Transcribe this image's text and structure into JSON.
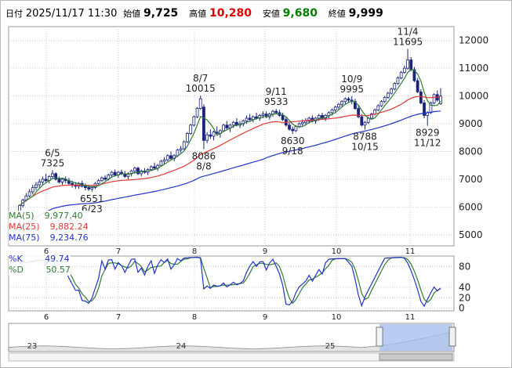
{
  "header": {
    "date_label": "日付",
    "datetime": "2025/11/17 11:30",
    "open_label": "始値",
    "open": "9,725",
    "high_label": "高値",
    "high": "10,280",
    "low_label": "安値",
    "low": "9,680",
    "close_label": "終値",
    "close": "9,999"
  },
  "legend": {
    "ma5_label": "MA(5)",
    "ma5": "9,977.40",
    "ma25_label": "MA(25)",
    "ma25": "9,882.24",
    "ma75_label": "MA(75)",
    "ma75": "9,234.76"
  },
  "stoch_legend": {
    "k_label": "%K",
    "k": "49.74",
    "d_label": "%D",
    "d": "50.57"
  },
  "colors": {
    "up": "#ffffff",
    "down": "#1a237e",
    "ma5": "#2e7d32",
    "ma25": "#e53935",
    "ma75": "#2233cc",
    "k": "#2233cc",
    "d": "#2e7d32",
    "navigator_fill": "#a8c0f0"
  },
  "chart_data": [
    {
      "type": "candlestick",
      "y_ticks": [
        "12000",
        "11000",
        "10000",
        "9000",
        "8000",
        "7000",
        "6000",
        "5000"
      ],
      "ylim": [
        4600,
        12500
      ],
      "x_month_labels": [
        "6",
        "7",
        "8",
        "9",
        "10",
        "11"
      ],
      "annotations": [
        {
          "text_top": "6/5",
          "text_bottom": "7325",
          "kind": "high",
          "date_index": 10
        },
        {
          "text_top": "6551",
          "text_bottom": "6/23",
          "kind": "low",
          "date_index": 22
        },
        {
          "text_top": "8/7",
          "text_bottom": "10015",
          "kind": "high",
          "date_index": 55
        },
        {
          "text_top": "8086",
          "text_bottom": "8/8",
          "kind": "low",
          "date_index": 56
        },
        {
          "text_top": "9/11",
          "text_bottom": "9533",
          "kind": "high",
          "date_index": 78
        },
        {
          "text_top": "8630",
          "text_bottom": "9/18",
          "kind": "low",
          "date_index": 83
        },
        {
          "text_top": "10/9",
          "text_bottom": "9995",
          "kind": "high",
          "date_index": 101
        },
        {
          "text_top": "8788",
          "text_bottom": "10/15",
          "kind": "low",
          "date_index": 105
        },
        {
          "text_top": "11/4",
          "text_bottom": "11695",
          "kind": "high",
          "date_index": 118
        },
        {
          "text_top": "8929",
          "text_bottom": "11/12",
          "kind": "low",
          "date_index": 124
        }
      ],
      "candles": [
        [
          5810,
          6100,
          5750,
          6050
        ],
        [
          6050,
          6300,
          5980,
          6250
        ],
        [
          6250,
          6500,
          6200,
          6400
        ],
        [
          6400,
          6650,
          6350,
          6550
        ],
        [
          6550,
          6800,
          6450,
          6700
        ],
        [
          6700,
          6900,
          6600,
          6800
        ],
        [
          6800,
          7000,
          6700,
          6900
        ],
        [
          6900,
          7100,
          6800,
          7000
        ],
        [
          7000,
          7200,
          6900,
          6950
        ],
        [
          6950,
          7150,
          6850,
          7100
        ],
        [
          7100,
          7325,
          7000,
          7200
        ],
        [
          7200,
          7250,
          6950,
          7000
        ],
        [
          7000,
          7100,
          6850,
          6900
        ],
        [
          6900,
          7050,
          6800,
          7000
        ],
        [
          7000,
          7100,
          6850,
          6950
        ],
        [
          6950,
          7050,
          6800,
          6850
        ],
        [
          6850,
          6950,
          6700,
          6800
        ],
        [
          6800,
          6900,
          6650,
          6750
        ],
        [
          6750,
          6900,
          6650,
          6850
        ],
        [
          6850,
          6950,
          6700,
          6750
        ],
        [
          6750,
          6850,
          6600,
          6700
        ],
        [
          6700,
          6800,
          6580,
          6650
        ],
        [
          6650,
          6750,
          6551,
          6700
        ],
        [
          6700,
          6900,
          6650,
          6850
        ],
        [
          6850,
          7000,
          6800,
          6950
        ],
        [
          6950,
          7100,
          6900,
          7050
        ],
        [
          7050,
          7150,
          6950,
          7000
        ],
        [
          7000,
          7200,
          6950,
          7150
        ],
        [
          7150,
          7300,
          7050,
          7250
        ],
        [
          7250,
          7350,
          7100,
          7150
        ],
        [
          7150,
          7300,
          7050,
          7250
        ],
        [
          7250,
          7350,
          7150,
          7200
        ],
        [
          7200,
          7300,
          7050,
          7100
        ],
        [
          7100,
          7250,
          7000,
          7200
        ],
        [
          7200,
          7350,
          7100,
          7300
        ],
        [
          7300,
          7450,
          7200,
          7400
        ],
        [
          7400,
          7450,
          7150,
          7200
        ],
        [
          7200,
          7350,
          7100,
          7300
        ],
        [
          7300,
          7400,
          7200,
          7250
        ],
        [
          7250,
          7400,
          7150,
          7350
        ],
        [
          7350,
          7500,
          7300,
          7450
        ],
        [
          7450,
          7600,
          7350,
          7400
        ],
        [
          7400,
          7550,
          7300,
          7500
        ],
        [
          7500,
          7700,
          7450,
          7650
        ],
        [
          7650,
          7800,
          7550,
          7700
        ],
        [
          7700,
          7900,
          7650,
          7850
        ],
        [
          7850,
          8000,
          7700,
          7750
        ],
        [
          7750,
          7900,
          7650,
          7850
        ],
        [
          7850,
          8100,
          7800,
          8050
        ],
        [
          8050,
          8200,
          7950,
          8100
        ],
        [
          8100,
          8400,
          8050,
          8350
        ],
        [
          8350,
          8700,
          8300,
          8650
        ],
        [
          8650,
          9000,
          8600,
          8950
        ],
        [
          8950,
          9300,
          8900,
          9250
        ],
        [
          9250,
          9600,
          9200,
          9550
        ],
        [
          9550,
          10015,
          9500,
          9900
        ],
        [
          9600,
          9700,
          8086,
          8400
        ],
        [
          8400,
          8700,
          8300,
          8600
        ],
        [
          8600,
          8800,
          8450,
          8550
        ],
        [
          8550,
          8750,
          8400,
          8700
        ],
        [
          8700,
          8900,
          8600,
          8650
        ],
        [
          8650,
          8800,
          8500,
          8750
        ],
        [
          8750,
          9000,
          8700,
          8950
        ],
        [
          8950,
          9100,
          8800,
          8850
        ],
        [
          8850,
          9000,
          8700,
          8950
        ],
        [
          8950,
          9100,
          8850,
          9050
        ],
        [
          9050,
          9200,
          8900,
          8950
        ],
        [
          8950,
          9100,
          8850,
          9000
        ],
        [
          9000,
          9150,
          8900,
          9100
        ],
        [
          9100,
          9300,
          9000,
          9200
        ],
        [
          9200,
          9350,
          9100,
          9150
        ],
        [
          9150,
          9300,
          9050,
          9250
        ],
        [
          9250,
          9400,
          9150,
          9200
        ],
        [
          9200,
          9350,
          9100,
          9300
        ],
        [
          9300,
          9450,
          9200,
          9350
        ],
        [
          9350,
          9450,
          9200,
          9250
        ],
        [
          9250,
          9400,
          9150,
          9350
        ],
        [
          9350,
          9500,
          9250,
          9450
        ],
        [
          9450,
          9533,
          9350,
          9400
        ],
        [
          9400,
          9500,
          9250,
          9300
        ],
        [
          9300,
          9400,
          9100,
          9150
        ],
        [
          9150,
          9250,
          8900,
          8950
        ],
        [
          8950,
          9050,
          8750,
          8800
        ],
        [
          8800,
          8900,
          8630,
          8750
        ],
        [
          8750,
          8950,
          8700,
          8900
        ],
        [
          8900,
          9050,
          8850,
          9000
        ],
        [
          9000,
          9150,
          8900,
          9050
        ],
        [
          9050,
          9200,
          8950,
          9100
        ],
        [
          9100,
          9250,
          9000,
          9200
        ],
        [
          9200,
          9300,
          9050,
          9100
        ],
        [
          9100,
          9250,
          9000,
          9200
        ],
        [
          9200,
          9350,
          9100,
          9300
        ],
        [
          9300,
          9400,
          9150,
          9200
        ],
        [
          9200,
          9350,
          9100,
          9300
        ],
        [
          9300,
          9450,
          9200,
          9400
        ],
        [
          9400,
          9550,
          9300,
          9500
        ],
        [
          9500,
          9650,
          9400,
          9600
        ],
        [
          9600,
          9750,
          9500,
          9700
        ],
        [
          9700,
          9850,
          9600,
          9800
        ],
        [
          9800,
          9950,
          9700,
          9900
        ],
        [
          9900,
          9970,
          9750,
          9850
        ],
        [
          9850,
          9995,
          9700,
          9800
        ],
        [
          9800,
          9900,
          9500,
          9550
        ],
        [
          9550,
          9650,
          9200,
          9250
        ],
        [
          9250,
          9350,
          8900,
          8950
        ],
        [
          8950,
          9100,
          8788,
          9050
        ],
        [
          9050,
          9250,
          9000,
          9200
        ],
        [
          9200,
          9400,
          9150,
          9350
        ],
        [
          9350,
          9550,
          9300,
          9500
        ],
        [
          9500,
          9700,
          9450,
          9650
        ],
        [
          9650,
          9850,
          9600,
          9800
        ],
        [
          9800,
          10000,
          9750,
          9950
        ],
        [
          9950,
          10150,
          9900,
          10100
        ],
        [
          10100,
          10300,
          10050,
          10250
        ],
        [
          10250,
          10500,
          10200,
          10450
        ],
        [
          10450,
          10700,
          10400,
          10650
        ],
        [
          10650,
          10900,
          10600,
          10850
        ],
        [
          10850,
          11100,
          10800,
          11000
        ],
        [
          11000,
          11695,
          10950,
          11300
        ],
        [
          11300,
          11400,
          10900,
          10950
        ],
        [
          10950,
          11050,
          10500,
          10550
        ],
        [
          10550,
          10650,
          10100,
          10150
        ],
        [
          10150,
          10250,
          9700,
          9750
        ],
        [
          9750,
          9850,
          9200,
          9300
        ],
        [
          9300,
          9450,
          8929,
          9400
        ],
        [
          9400,
          9800,
          9350,
          9750
        ],
        [
          9750,
          10100,
          9700,
          10050
        ],
        [
          10050,
          10200,
          9800,
          9850
        ],
        [
          9725,
          10280,
          9680,
          9999
        ]
      ]
    },
    {
      "type": "line",
      "title": "",
      "series_names": [
        "%K",
        "%D"
      ],
      "y_ticks": [
        "80",
        "40",
        "20",
        "0"
      ],
      "ylim": [
        -5,
        100
      ],
      "x_month_labels": [
        "6",
        "7",
        "8",
        "9",
        "10",
        "11"
      ]
    },
    {
      "type": "area",
      "x_year_labels": [
        "23",
        "24",
        "25"
      ]
    }
  ]
}
